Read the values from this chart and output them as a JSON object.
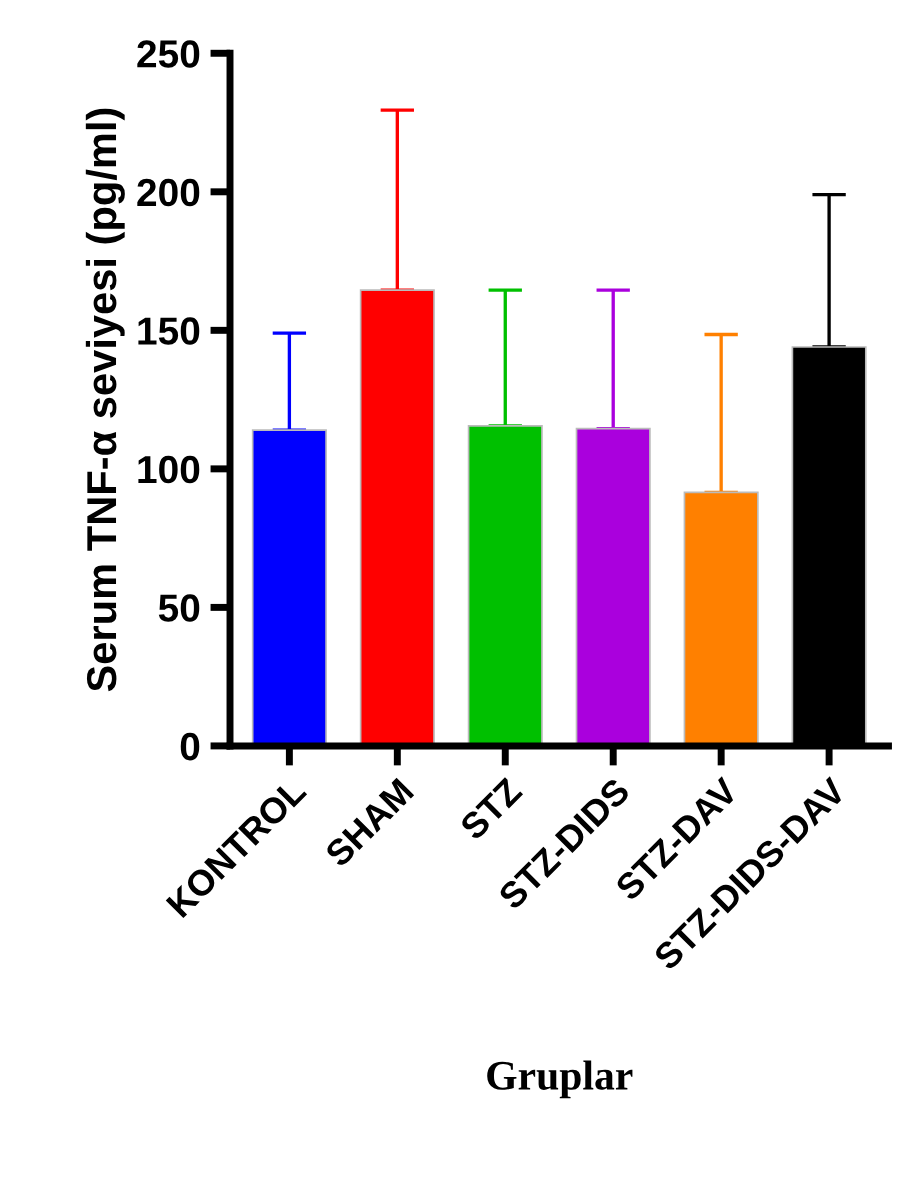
{
  "chart_data": {
    "type": "bar",
    "xlabel": "Gruplar",
    "ylabel": "Serum TNF-α seviyesi (pg/ml)",
    "categories": [
      "KONTROL",
      "SHAM",
      "STZ",
      "STZ-DIDS",
      "STZ-DAV",
      "STZ-DIDS-DAV"
    ],
    "values": [
      114,
      164.5,
      115.5,
      114.5,
      91.5,
      144
    ],
    "colors": [
      "#0000ff",
      "#ff0000",
      "#00c000",
      "#aa00dd",
      "#ff8000",
      "#000000"
    ],
    "errors": [
      [
        114,
        149
      ],
      [
        164.5,
        229.5
      ],
      [
        115.5,
        164.5
      ],
      [
        114.5,
        164.5
      ],
      [
        91.5,
        148.5
      ],
      [
        144,
        199
      ]
    ],
    "ylim": [
      0,
      250
    ],
    "yticks": [
      0,
      50,
      100,
      150,
      200,
      250
    ],
    "grid": false,
    "legend": false
  }
}
